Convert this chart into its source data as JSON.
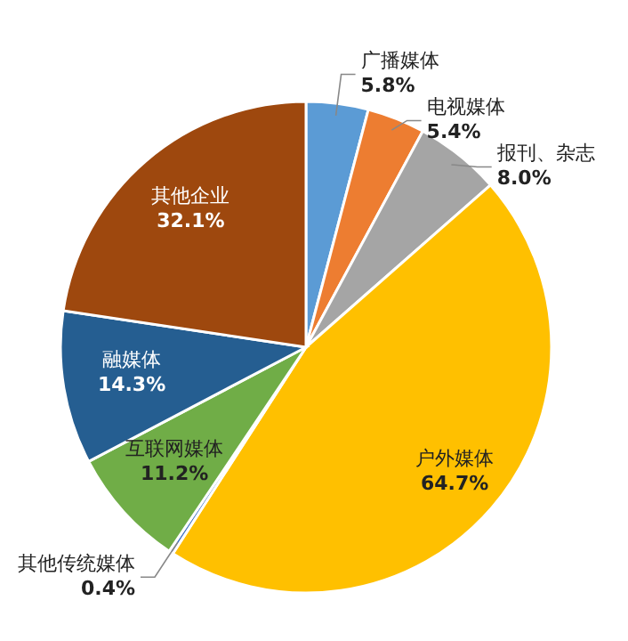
{
  "chart_data": {
    "type": "pie",
    "categories": [
      "广播媒体",
      "电视媒体",
      "报刊、杂志",
      "户外媒体",
      "其他传统媒体",
      "互联网媒体",
      "融媒体",
      "其他企业"
    ],
    "values": [
      5.8,
      5.4,
      8.0,
      64.7,
      0.4,
      11.2,
      14.3,
      32.1
    ],
    "value_labels": [
      "5.8%",
      "5.4%",
      "8.0%",
      "64.7%",
      "0.4%",
      "11.2%",
      "14.3%",
      "32.1%"
    ],
    "colors": [
      "#5b9bd5",
      "#ed7d31",
      "#a5a5a5",
      "#ffc000",
      "#4472c4",
      "#70ad47",
      "#255e91",
      "#9e480e"
    ]
  }
}
